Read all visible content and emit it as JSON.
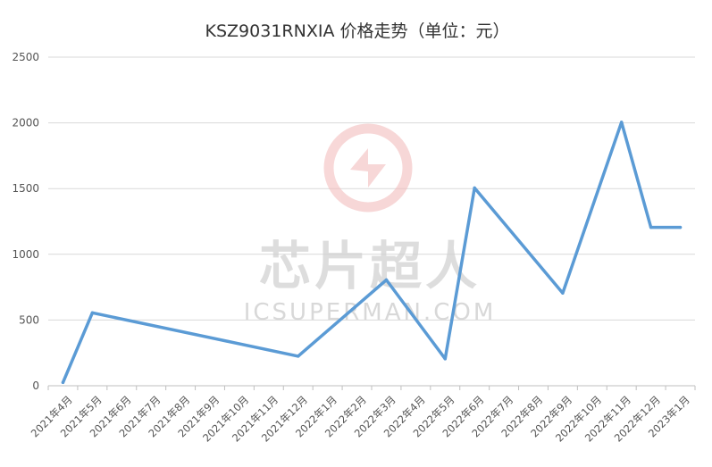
{
  "chart_data": {
    "type": "line",
    "title": "KSZ9031RNXIA 价格走势（单位：元）",
    "xlabel": "",
    "ylabel": "",
    "ylim": [
      0,
      2500
    ],
    "yticks": [
      0,
      500,
      1000,
      1500,
      2000,
      2500
    ],
    "grid": true,
    "legend": "none",
    "categories": [
      "2021年4月",
      "2021年5月",
      "2021年6月",
      "2021年7月",
      "2021年8月",
      "2021年9月",
      "2021年10月",
      "2021年11月",
      "2021年12月",
      "2022年1月",
      "2022年2月",
      "2022年3月",
      "2022年4月",
      "2022年5月",
      "2022年6月",
      "2022年7月",
      "2022年8月",
      "2022年9月",
      "2022年10月",
      "2022年11月",
      "2022年12月",
      "2023年1月"
    ],
    "points": [
      {
        "x": "2021年4月",
        "y": 25
      },
      {
        "x": "2021年5月",
        "y": 555
      },
      {
        "x": "2021年12月",
        "y": 225
      },
      {
        "x": "2022年3月",
        "y": 805
      },
      {
        "x": "2022年5月",
        "y": 205
      },
      {
        "x": "2022年6月",
        "y": 1505
      },
      {
        "x": "2022年9月",
        "y": 705
      },
      {
        "x": "2022年11月",
        "y": 2005
      },
      {
        "x": "2022年12月",
        "y": 1205
      },
      {
        "x": "2023年1月",
        "y": 1205
      }
    ],
    "line_color": "#5b9bd5"
  },
  "watermark": {
    "text": "芯片超人",
    "subtext": "ICSUPERMAN.COM",
    "logo_icon": "lightning-s-icon",
    "color": "#f2b8b8"
  }
}
